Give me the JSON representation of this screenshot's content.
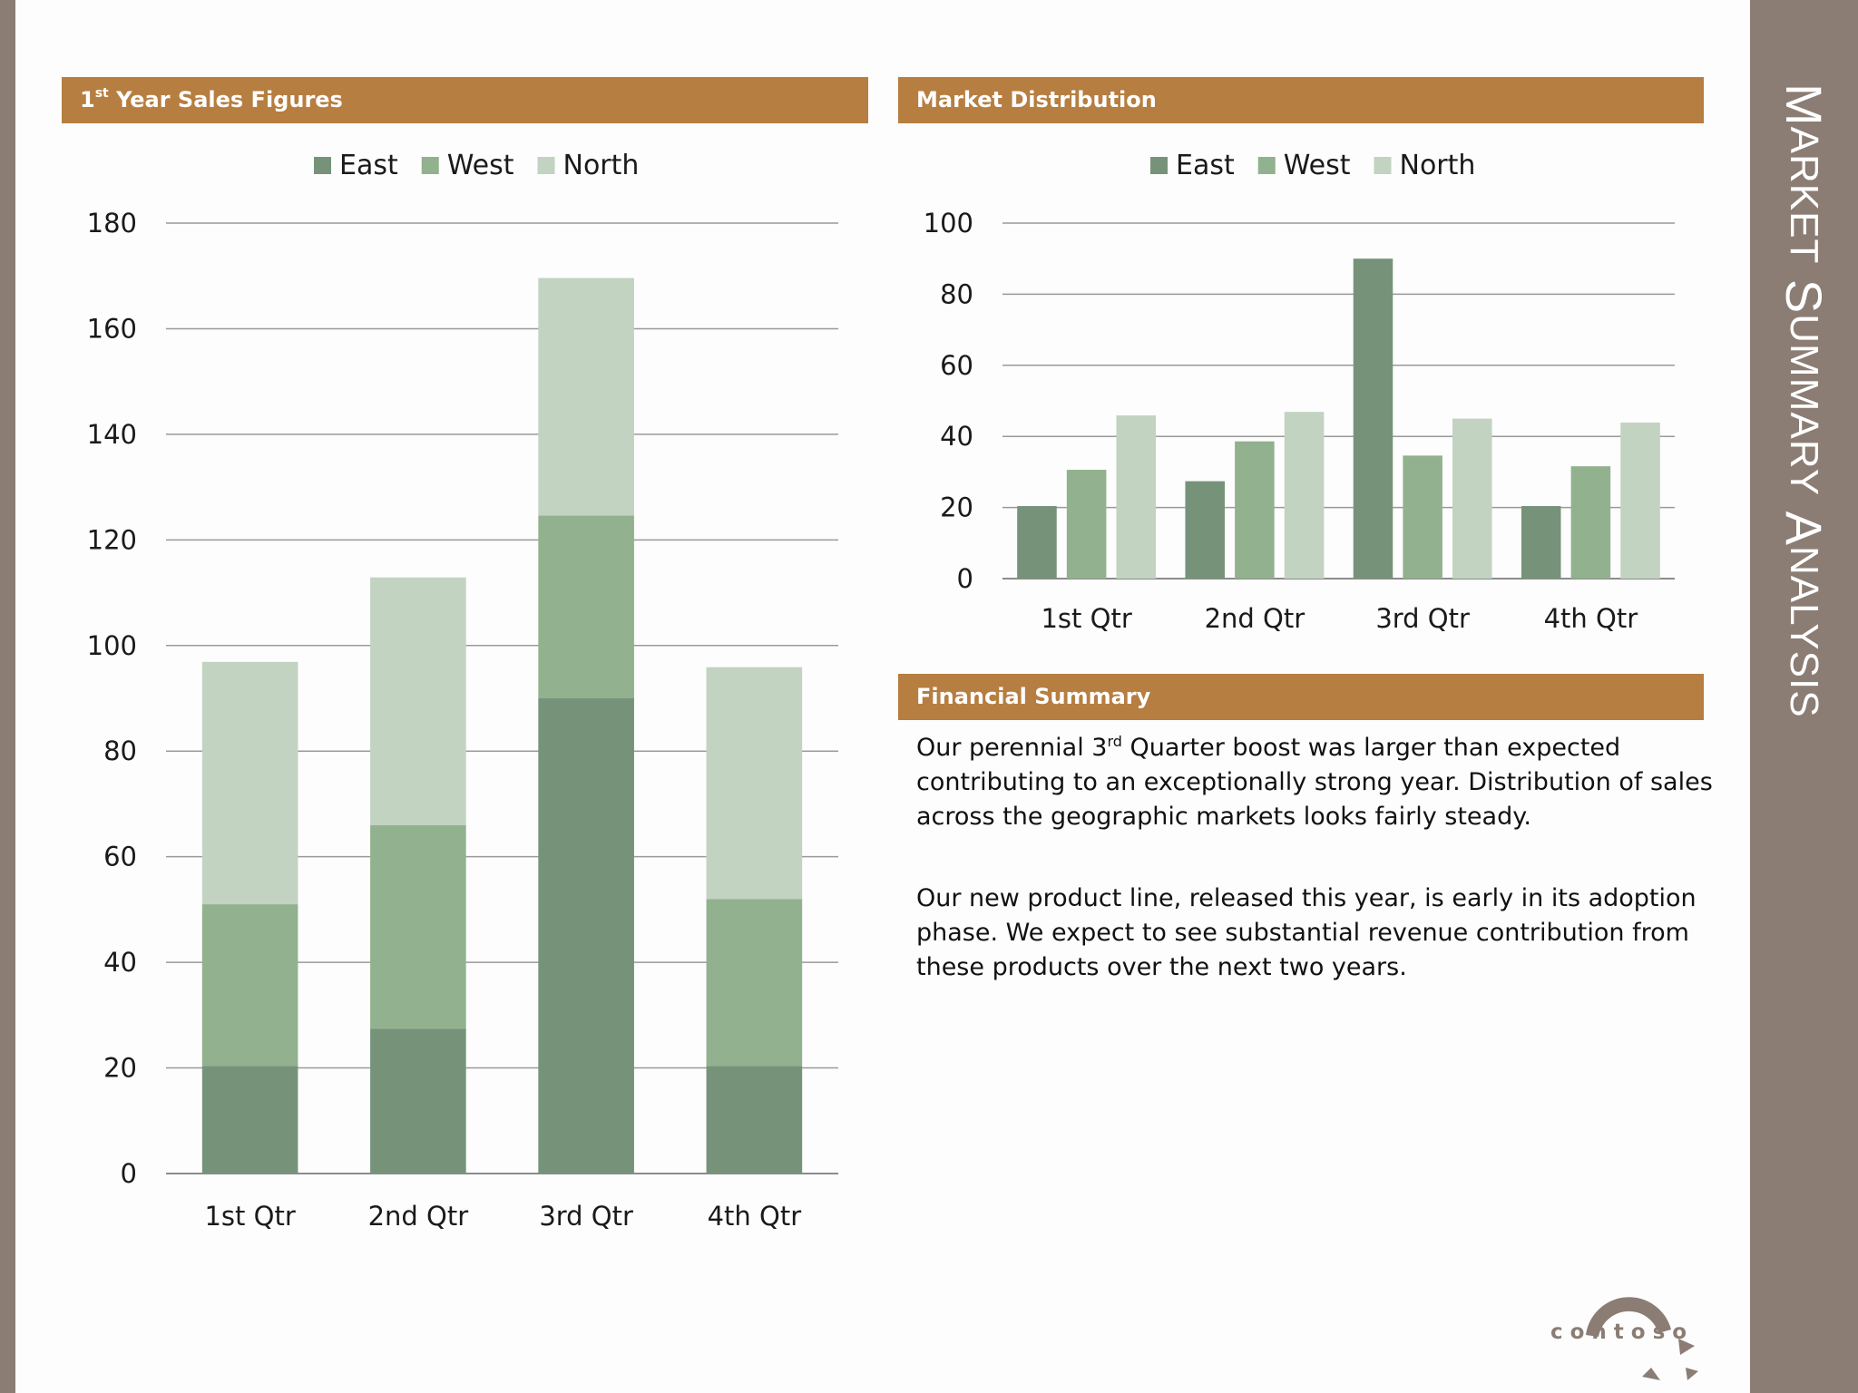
{
  "side_title": {
    "first_letter_1": "M",
    "rest_1": "ARKET",
    "first_letter_2": "S",
    "rest_2": "UMMARY",
    "first_letter_3": "A",
    "rest_3": "NALYSIS"
  },
  "sections": {
    "sales": {
      "title_prefix": "1",
      "title_sup": "st",
      "title_rest": " Year Sales Figures"
    },
    "market": {
      "title": "Market Distribution"
    },
    "financial": {
      "title": "Financial Summary"
    }
  },
  "summary": {
    "p1_before": "Our perennial 3",
    "p1_sup": "rd",
    "p1_after": " Quarter boost was larger than expected contributing to an exceptionally strong year. Distribution of sales across the geographic markets looks fairly steady.",
    "p2": "Our new product line, released this year, is early in its adoption phase. We expect to see substantial revenue contribution from these products over the next two years."
  },
  "logo": {
    "text": "contoso"
  },
  "colors": {
    "east": "#76937a",
    "west": "#92b18e",
    "north": "#c2d3c1",
    "banner": "#b67e40",
    "side_panel": "#8b7d74"
  },
  "chart_data": [
    {
      "type": "bar",
      "stacked": true,
      "categories": [
        "1st Qtr",
        "2nd Qtr",
        "3rd Qtr",
        "4th Qtr"
      ],
      "series": [
        {
          "name": "East",
          "values": [
            20.4,
            27.4,
            90,
            20.4
          ]
        },
        {
          "name": "West",
          "values": [
            30.6,
            38.6,
            34.6,
            31.6
          ]
        },
        {
          "name": "North",
          "values": [
            45.9,
            46.9,
            45,
            43.9
          ]
        }
      ],
      "ylim": [
        0,
        180
      ],
      "yticks": [
        0,
        20,
        40,
        60,
        80,
        100,
        120,
        140,
        160,
        180
      ],
      "legend": "top",
      "grid": true
    },
    {
      "type": "bar",
      "stacked": false,
      "categories": [
        "1st Qtr",
        "2nd Qtr",
        "3rd Qtr",
        "4th Qtr"
      ],
      "series": [
        {
          "name": "East",
          "values": [
            20.4,
            27.4,
            90,
            20.4
          ]
        },
        {
          "name": "West",
          "values": [
            30.6,
            38.6,
            34.6,
            31.6
          ]
        },
        {
          "name": "North",
          "values": [
            45.9,
            46.9,
            45,
            43.9
          ]
        }
      ],
      "ylim": [
        0,
        100
      ],
      "yticks": [
        0,
        20,
        40,
        60,
        80,
        100
      ],
      "legend": "top",
      "grid": true
    }
  ]
}
